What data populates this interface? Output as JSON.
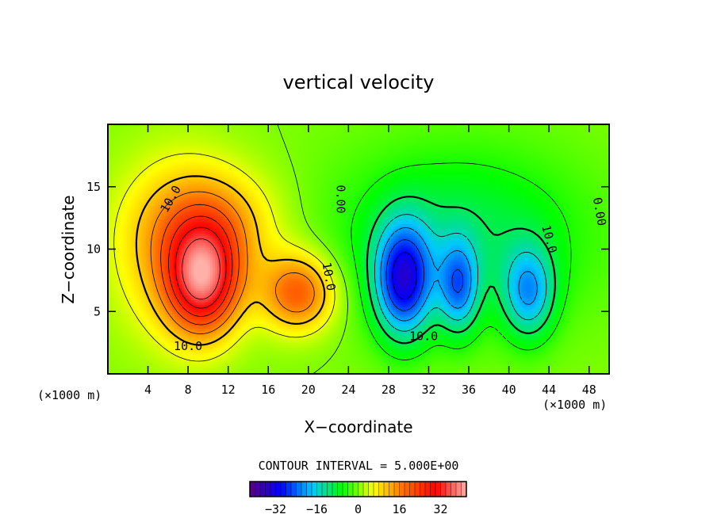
{
  "chart_data": {
    "type": "heatmap",
    "title": "vertical velocity",
    "xlabel": "X−coordinate",
    "ylabel": "Z−coordinate",
    "x_unit_left": "(×1000 m)",
    "x_unit_right": "(×1000 m)",
    "xlim": [
      0,
      50
    ],
    "ylim": [
      0,
      20
    ],
    "x_ticks": [
      4,
      8,
      12,
      16,
      20,
      24,
      28,
      32,
      36,
      40,
      44,
      48
    ],
    "y_ticks": [
      5,
      10,
      15
    ],
    "contour_interval_text": "CONTOUR INTERVAL = 5.000E+00",
    "contour_interval": 5,
    "contour_labels": [
      {
        "text": "10.0",
        "x": 6.3,
        "z": 14.0,
        "angle": -60
      },
      {
        "text": "0.00",
        "x": 23.2,
        "z": 14.0,
        "angle": 90
      },
      {
        "text": "10.0",
        "x": 22.0,
        "z": 7.8,
        "angle": 80
      },
      {
        "text": "10.0",
        "x": 8.0,
        "z": 2.2,
        "angle": 0
      },
      {
        "text": "10.0",
        "x": 31.5,
        "z": 3.0,
        "angle": 0
      },
      {
        "text": "10.0",
        "x": 44.0,
        "z": 10.8,
        "angle": 75
      },
      {
        "text": "0.00",
        "x": 49.0,
        "z": 13.0,
        "angle": 80
      }
    ],
    "colorbar": {
      "range": [
        -42,
        42
      ],
      "ticks": [
        -32,
        -16,
        0,
        16,
        32
      ],
      "colors": [
        "#5a0080",
        "#0000ff",
        "#00c8ff",
        "#00ff00",
        "#ffff00",
        "#ff6a00",
        "#ff0000",
        "#ffb0a8"
      ]
    },
    "field_centers": [
      {
        "x": 9.5,
        "z": 7.5,
        "w": 30,
        "sx": 2.5,
        "sz": 3.0
      },
      {
        "x": 11.0,
        "z": 12.0,
        "w": 10,
        "sx": 4.5,
        "sz": 3.0
      },
      {
        "x": 7.0,
        "z": 10.0,
        "w": 12,
        "sx": 4.5,
        "sz": 5.0
      },
      {
        "x": 19.0,
        "z": 6.5,
        "w": 20,
        "sx": 2.6,
        "sz": 2.2
      },
      {
        "x": 29.5,
        "z": 7.5,
        "w": -28,
        "sx": 2.0,
        "sz": 3.2
      },
      {
        "x": 35.0,
        "z": 7.0,
        "w": -18,
        "sx": 1.4,
        "sz": 2.6
      },
      {
        "x": 42.0,
        "z": 6.5,
        "w": -17,
        "sx": 1.8,
        "sz": 2.6
      },
      {
        "x": 35.0,
        "z": 11.0,
        "w": -10,
        "sx": 9.0,
        "sz": 5.0
      }
    ]
  }
}
